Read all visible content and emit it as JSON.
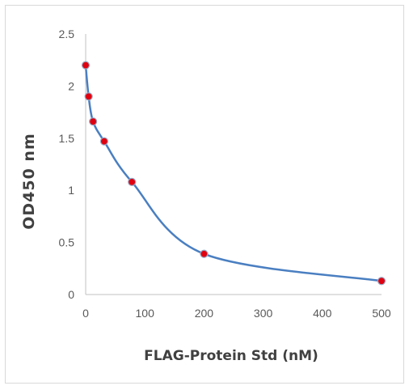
{
  "chart_data": {
    "type": "line",
    "title": "",
    "xlabel": "FLAG-Protein Std (nM)",
    "ylabel": "OD450 nm",
    "x": [
      0,
      5,
      12.5,
      31.25,
      78.125,
      200,
      500
    ],
    "series": [
      {
        "name": "",
        "values": [
          2.2,
          1.9,
          1.66,
          1.47,
          1.08,
          0.39,
          0.13
        ]
      }
    ],
    "xlim": [
      0,
      500
    ],
    "ylim": [
      0,
      2.5
    ],
    "xticks": [
      "0",
      "100",
      "200",
      "300",
      "400",
      "500"
    ],
    "yticks": [
      "0",
      "0.5",
      "1",
      "1.5",
      "2",
      "2.5"
    ],
    "grid": false,
    "legend": "none",
    "line_color": "#4a7fc1",
    "marker_color": "#e0000f"
  }
}
